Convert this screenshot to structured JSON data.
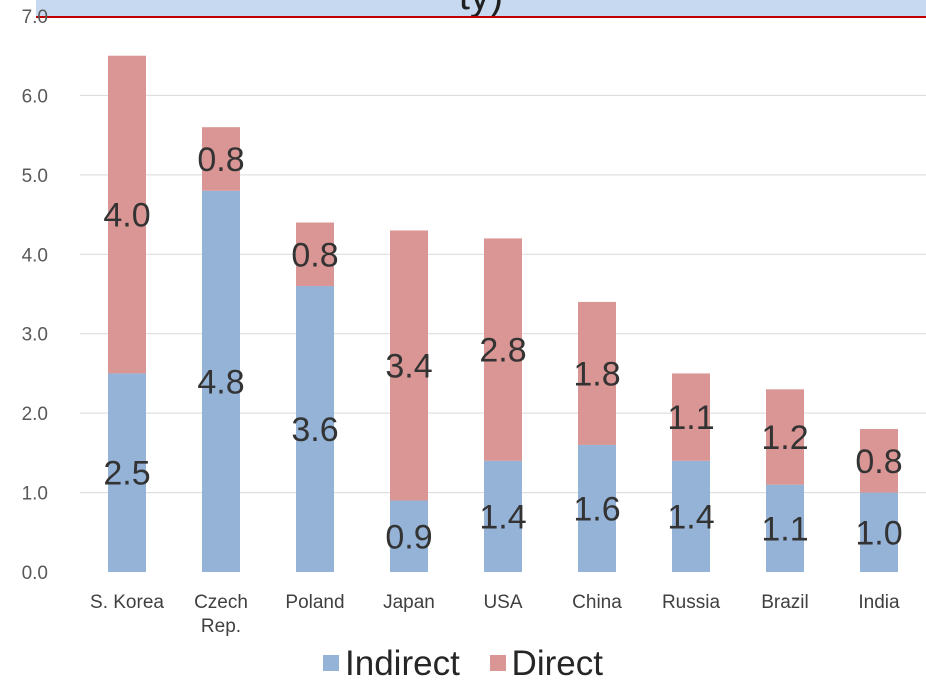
{
  "title_fragment": "ty)",
  "colors": {
    "indirect": "#95b3d7",
    "direct": "#d99694",
    "grid": "#d9d9d9",
    "title_band": "#c6d9f0",
    "title_rule": "#c00000"
  },
  "chart_data": {
    "type": "bar",
    "stacked": true,
    "categories": [
      "S. Korea",
      "Czech Rep.",
      "Poland",
      "Japan",
      "USA",
      "China",
      "Russia",
      "Brazil",
      "India"
    ],
    "series": [
      {
        "name": "Indirect",
        "values": [
          2.5,
          4.8,
          3.6,
          0.9,
          1.4,
          1.6,
          1.4,
          1.1,
          1.0
        ],
        "labels": [
          "2.5",
          "4.8",
          "3.6",
          "0.9",
          "1.4",
          "1.6",
          "1.4",
          "1.1",
          "1.0"
        ]
      },
      {
        "name": "Direct",
        "values": [
          4.0,
          0.8,
          0.8,
          3.4,
          2.8,
          1.8,
          1.1,
          1.2,
          0.8
        ],
        "labels": [
          "4.0",
          "0.8",
          "0.8",
          "3.4",
          "2.8",
          "1.8",
          "1.1",
          "1.2",
          "0.8"
        ]
      }
    ],
    "y_ticks": [
      "0.0",
      "1.0",
      "2.0",
      "3.0",
      "4.0",
      "5.0",
      "6.0",
      "7.0"
    ],
    "ylim": [
      0,
      7
    ],
    "grid": true,
    "legend_position": "bottom"
  }
}
